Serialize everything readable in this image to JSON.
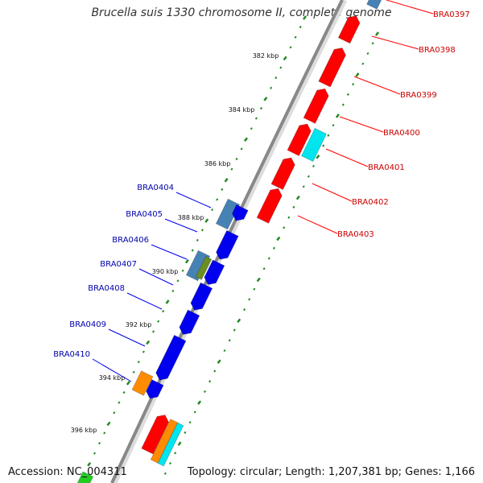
{
  "title": "Brucella suis 1330 chromosome II, complete genome",
  "footer": {
    "accession": "Accession: NC_004311",
    "summary": "Topology: circular; Length: 1,207,381 bp; Genes: 1,166"
  },
  "kbp_ticks": [
    "382 kbp",
    "384 kbp",
    "386 kbp",
    "388 kbp",
    "390 kbp",
    "392 kbp",
    "394 kbp",
    "396 kbp"
  ],
  "genes_right": [
    "BRA0397",
    "BRA0398",
    "BRA0399",
    "BRA0400",
    "BRA0401",
    "BRA0402",
    "BRA0403"
  ],
  "genes_left": [
    "BRA0404",
    "BRA0405",
    "BRA0406",
    "BRA0407",
    "BRA0408",
    "BRA0409",
    "BRA0410"
  ],
  "colors": {
    "forward_strand": "#ff0000",
    "reverse_strand": "#0000ee",
    "backbone": "#888888",
    "gc_dots": "#228822",
    "label_right": "#cc0000",
    "label_left": "#0000aa",
    "misc_1": "#4682b4",
    "misc_2": "#00e5ee",
    "misc_3": "#ff8c00",
    "misc_4": "#6b8e23"
  }
}
